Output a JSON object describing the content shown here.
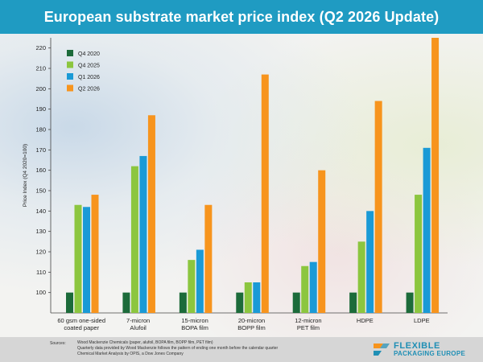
{
  "header": {
    "title": "European substrate market price index (Q2 2026 Update)"
  },
  "chart_data": {
    "type": "bar",
    "ylabel": "Price Index (Q4 2020=100)",
    "xlabel": "",
    "ylim": [
      90,
      225
    ],
    "yticks": [
      100,
      110,
      120,
      130,
      140,
      150,
      160,
      170,
      180,
      190,
      200,
      210,
      220
    ],
    "grid": false,
    "legend_position": "top-left",
    "categories": [
      [
        "60 gsm one-sided",
        "coated paper"
      ],
      [
        "7-micron",
        "Alufoil"
      ],
      [
        "15-micron",
        "BOPA film"
      ],
      [
        "20-micron",
        "BOPP film"
      ],
      [
        "12-micron",
        "PET film"
      ],
      [
        "HDPE"
      ],
      [
        "LDPE"
      ]
    ],
    "series": [
      {
        "name": "Q4 2020",
        "color": "#1c6b3a",
        "values": [
          100,
          100,
          100,
          100,
          100,
          100,
          100
        ]
      },
      {
        "name": "Q4 2025",
        "color": "#8cc63f",
        "values": [
          143,
          162,
          116,
          105,
          113,
          125,
          148
        ]
      },
      {
        "name": "Q1 2026",
        "color": "#1a9ad6",
        "values": [
          142,
          167,
          121,
          105,
          115,
          140,
          171
        ]
      },
      {
        "name": "Q2 2026",
        "color": "#f7941d",
        "values": [
          148,
          187,
          143,
          207,
          160,
          194,
          225
        ]
      }
    ]
  },
  "footer": {
    "sources_label": "Sources:",
    "sources_lines": [
      "Wood Mackenzie Chemicals (paper, alufoil, BOPA film, BOPP film, PET film)",
      "Quarterly data provided by Wood Mackenzie follows the pattern of ending one month before the calendar quarter",
      "Chemical Market Analysis by OPIS, a Dow Jones Company"
    ],
    "logo_line1": "FLEXIBLE",
    "logo_line2": "PACKAGING EUROPE"
  }
}
